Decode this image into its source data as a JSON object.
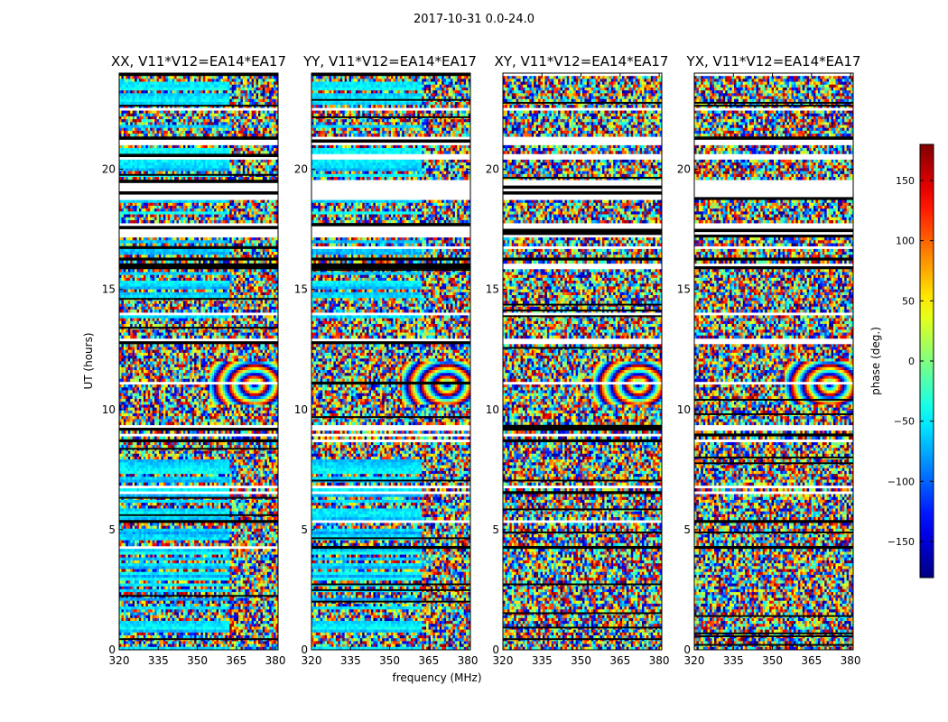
{
  "chart_data": {
    "type": "heatmap",
    "suptitle": "2017-10-31 0.0-24.0",
    "xlabel": "frequency (MHz)",
    "ylabel": "UT (hours)",
    "colorbar_label": "phase (deg.)",
    "colormap": "jet",
    "xlim": [
      320,
      381
    ],
    "ylim": [
      0,
      24
    ],
    "clim": [
      -180,
      180
    ],
    "x_ticks": [
      320,
      335,
      350,
      365,
      380
    ],
    "y_ticks": [
      0,
      5,
      10,
      15,
      20
    ],
    "colorbar_ticks": [
      -150,
      -100,
      -50,
      0,
      50,
      100,
      150
    ],
    "panels": [
      {
        "title": "XX, V11*V12=EA14*EA17",
        "pol": "XX"
      },
      {
        "title": "YY, V11*V12=EA14*EA17",
        "pol": "YY"
      },
      {
        "title": "XY, V11*V12=EA14*EA17",
        "pol": "XY"
      },
      {
        "title": "YX, V11*V12=EA14*EA17",
        "pol": "YX"
      }
    ],
    "flagged_ut_ranges": [
      [
        17.2,
        17.6
      ],
      [
        18.7,
        19.6
      ],
      [
        20.4,
        20.6
      ],
      [
        21.0,
        21.3
      ],
      [
        12.7,
        12.9
      ]
    ],
    "coherent_phase_bands": {
      "parallel_hand_low_freq_phase_deg": -60,
      "fringe_region_ut": [
        10.2,
        12.0
      ]
    }
  }
}
